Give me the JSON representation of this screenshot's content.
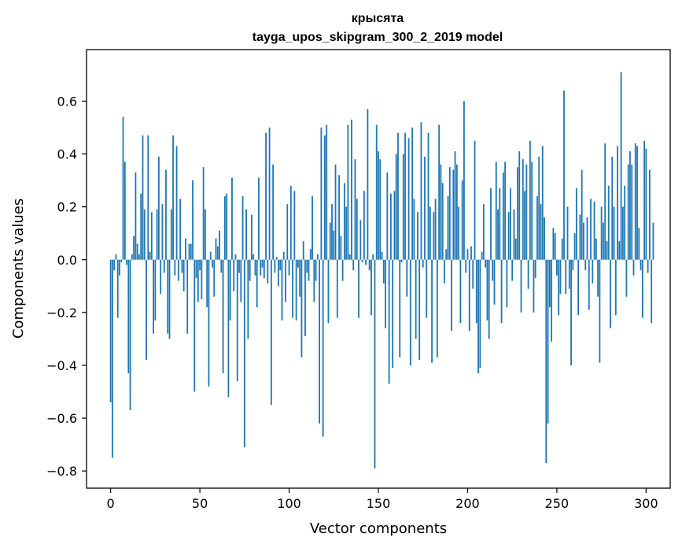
{
  "chart_data": {
    "type": "bar",
    "title": "крысята",
    "subtitle": "tayga_upos_skipgram_300_2_2019 model",
    "xlabel": "Vector components",
    "ylabel": "Components values",
    "xlim": [
      -13.5,
      313.5
    ],
    "ylim": [
      -0.865,
      0.795
    ],
    "xticks": [
      0,
      50,
      100,
      150,
      200,
      250,
      300
    ],
    "yticks": [
      -0.8,
      -0.6,
      -0.4,
      -0.2,
      0.0,
      0.2,
      0.4,
      0.6
    ],
    "ytick_labels": [
      "−0.8",
      "−0.6",
      "−0.4",
      "−0.2",
      "0.0",
      "0.2",
      "0.4",
      "0.6"
    ],
    "bar_color": "#1f77b4",
    "grid": false,
    "values": [
      -0.54,
      -0.75,
      -0.04,
      0.02,
      -0.22,
      -0.06,
      -0.01,
      0.54,
      0.37,
      -0.02,
      -0.43,
      -0.57,
      0.02,
      0.09,
      0.33,
      0.06,
      0.02,
      0.25,
      0.47,
      0.19,
      -0.38,
      0.47,
      0.03,
      0.18,
      -0.28,
      -0.23,
      0.19,
      0.39,
      -0.13,
      0.21,
      -0.05,
      0.34,
      -0.28,
      -0.3,
      0.19,
      0.47,
      -0.06,
      0.43,
      -0.08,
      0.23,
      -0.05,
      -0.12,
      0.08,
      -0.28,
      0.06,
      0.06,
      0.3,
      -0.5,
      -0.07,
      -0.16,
      -0.04,
      -0.15,
      0.35,
      0.19,
      -0.18,
      -0.48,
      0.03,
      -0.03,
      -0.14,
      0.08,
      0.05,
      0.11,
      -0.05,
      -0.43,
      0.24,
      0.25,
      -0.52,
      -0.23,
      0.31,
      -0.12,
      0.02,
      -0.46,
      -0.05,
      -0.16,
      0.24,
      -0.71,
      0.19,
      -0.3,
      -0.08,
      0.17,
      0.02,
      -0.06,
      -0.18,
      0.31,
      -0.06,
      -0.03,
      -0.07,
      0.48,
      -0.09,
      0.5,
      -0.55,
      0.36,
      -0.05,
      0.01,
      -0.1,
      -0.04,
      -0.23,
      0.03,
      -0.16,
      0.21,
      -0.06,
      0.28,
      -0.22,
      0.26,
      -0.23,
      -0.03,
      -0.14,
      -0.37,
      0.07,
      -0.29,
      -0.05,
      -0.08,
      0.04,
      0.24,
      -0.16,
      -0.08,
      0.02,
      -0.62,
      0.5,
      -0.67,
      0.47,
      0.51,
      -0.24,
      0.14,
      0.21,
      0.11,
      0.36,
      -0.22,
      0.32,
      0.09,
      -0.08,
      0.29,
      0.2,
      0.51,
      0.02,
      0.53,
      -0.04,
      0.38,
      0.23,
      -0.22,
      0.15,
      -0.01,
      0.26,
      -0.02,
      0.57,
      -0.04,
      -0.21,
      0.02,
      -0.79,
      0.51,
      0.41,
      0.38,
      0.03,
      -0.09,
      -0.26,
      0.33,
      -0.47,
      0.25,
      -0.41,
      0.26,
      0.4,
      0.48,
      -0.37,
      -0.01,
      0.4,
      0.48,
      -0.14,
      0.46,
      -0.4,
      0.5,
      0.23,
      -0.3,
      0.18,
      -0.38,
      0.52,
      -0.03,
      0.39,
      -0.22,
      0.48,
      0.2,
      -0.39,
      0.18,
      0.23,
      -0.37,
      0.51,
      0.36,
      0.29,
      -0.09,
      0.04,
      0.24,
      0.35,
      -0.27,
      0.34,
      0.41,
      0.36,
      0.2,
      -0.24,
      0.3,
      0.6,
      -0.05,
      0.04,
      -0.27,
      0.05,
      -0.11,
      0.45,
      -0.24,
      -0.43,
      -0.41,
      0.03,
      0.21,
      -0.03,
      -0.23,
      -0.3,
      0.27,
      -0.08,
      -0.17,
      0.37,
      0.19,
      0.27,
      -0.24,
      0.33,
      0.37,
      -0.18,
      0.18,
      0.27,
      -0.08,
      0.19,
      0.08,
      0.35,
      0.41,
      -0.2,
      0.38,
      0.26,
      0.36,
      -0.11,
      0.45,
      0.37,
      -0.2,
      -0.07,
      0.24,
      0.39,
      0.21,
      0.43,
      0.16,
      -0.77,
      -0.62,
      -0.18,
      -0.31,
      0.12,
      0.1,
      -0.06,
      -0.21,
      -0.13,
      0.08,
      0.64,
      -0.13,
      0.2,
      -0.11,
      -0.4,
      -0.04,
      0.1,
      0.27,
      -0.21,
      0.17,
      0.34,
      0.14,
      -0.04,
      0.16,
      -0.19,
      0.23,
      -0.09,
      0.22,
      0.08,
      -0.14,
      -0.39,
      0.2,
      0.14,
      0.44,
      0.07,
      0.28,
      -0.26,
      0.39,
      0.2,
      -0.21,
      0.43,
      0.07,
      0.71,
      0.2,
      0.28,
      -0.14,
      0.36,
      0.41,
      0.36,
      -0.06,
      0.44,
      0.43,
      0.12,
      -0.04,
      -0.22,
      0.45,
      0.42,
      -0.05,
      0.34,
      -0.24,
      0.14
    ]
  }
}
